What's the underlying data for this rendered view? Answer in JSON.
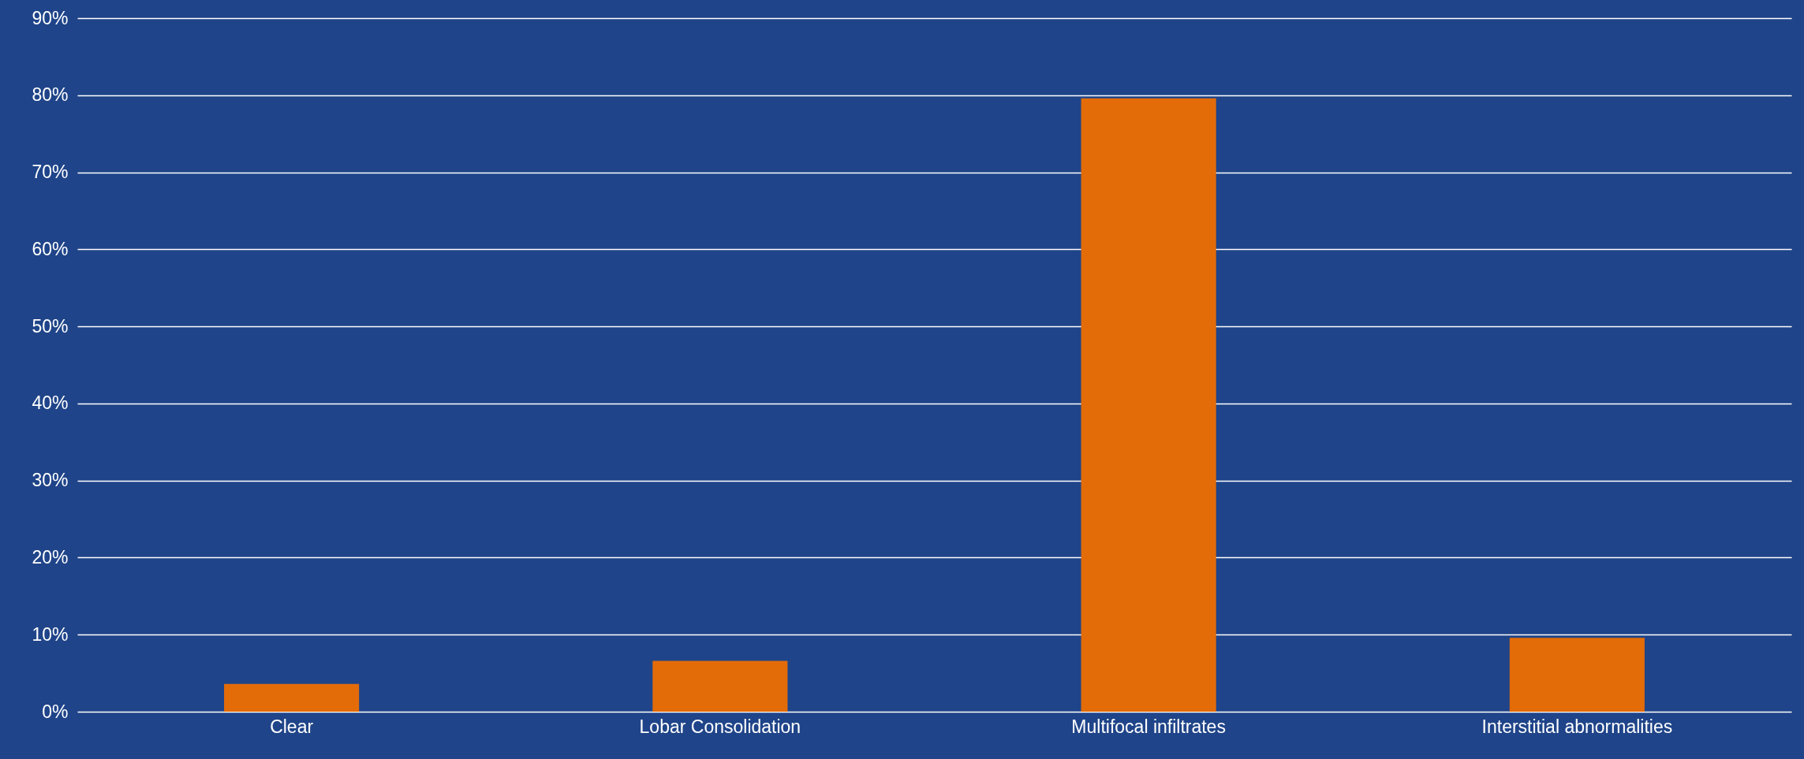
{
  "chart_data": {
    "type": "bar",
    "categories": [
      "Clear",
      "Lobar Consolidation",
      "Multifocal infiltrates",
      "Interstitial abnormalities"
    ],
    "values": [
      3.6,
      6.6,
      79.6,
      9.6
    ],
    "color": "#e36c09",
    "ylim": [
      0,
      90
    ],
    "yticks": [
      {
        "value": 0,
        "label": "0%"
      },
      {
        "value": 10,
        "label": "10%"
      },
      {
        "value": 20,
        "label": "20%"
      },
      {
        "value": 30,
        "label": "30%"
      },
      {
        "value": 40,
        "label": "40%"
      },
      {
        "value": 50,
        "label": "50%"
      },
      {
        "value": 60,
        "label": "60%"
      },
      {
        "value": 70,
        "label": "70%"
      },
      {
        "value": 80,
        "label": "80%"
      },
      {
        "value": 90,
        "label": "90%"
      }
    ],
    "grid": "y",
    "legend": false
  }
}
